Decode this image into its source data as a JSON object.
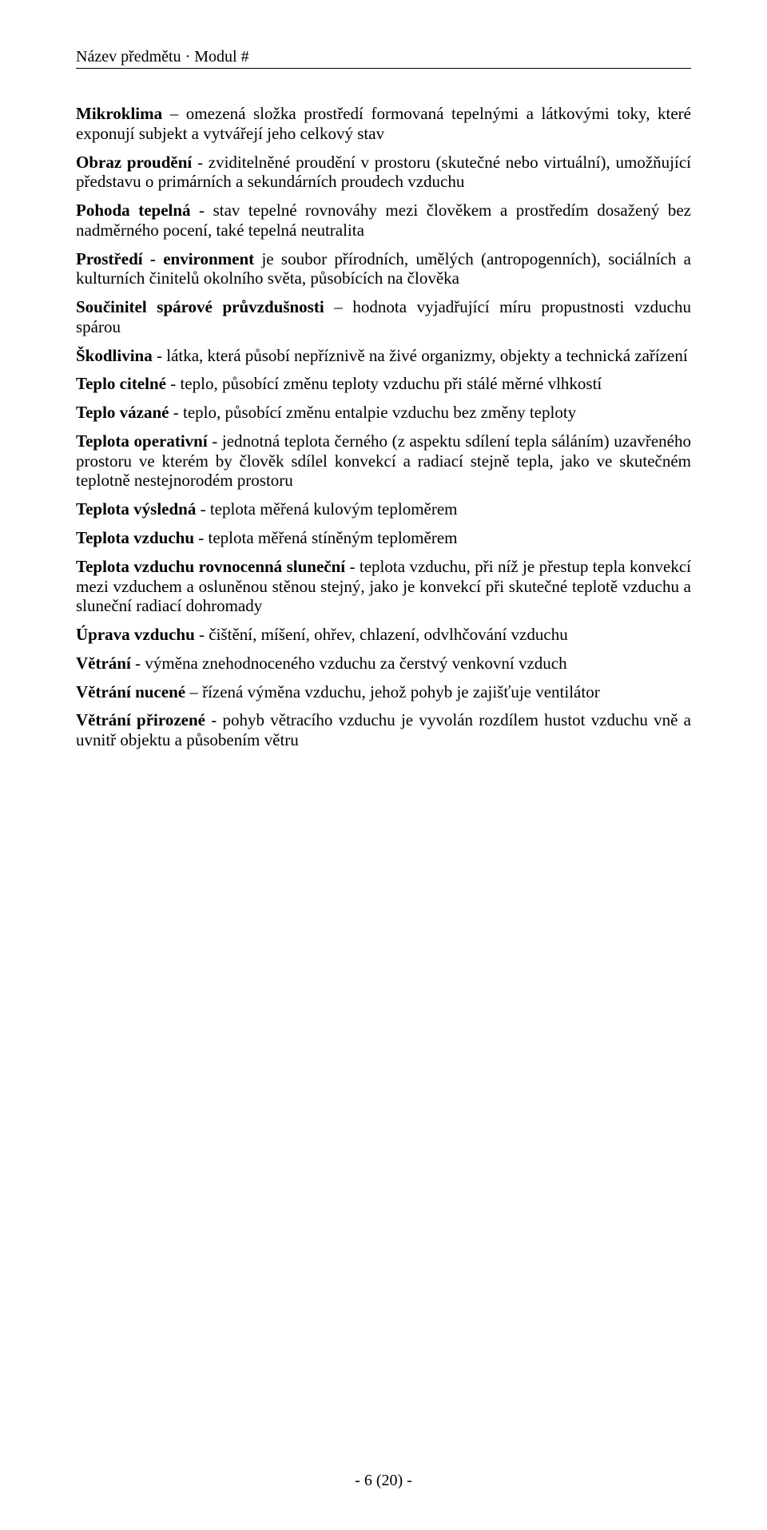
{
  "header": "Název předmětu · Modul #",
  "definitions": [
    {
      "term": "Mikroklima",
      "sep": " – ",
      "text": "omezená složka prostředí formovaná tepelnými a látkovými toky, které exponují subjekt a vytvářejí jeho celkový stav"
    },
    {
      "term": "Obraz proudění",
      "sep": " - ",
      "text": "zviditelněné proudění v prostoru (skutečné nebo virtuální), umožňující představu o primárních a sekundárních proudech vzduchu"
    },
    {
      "term": "Pohoda tepelná",
      "sep": " - ",
      "text": "stav tepelné rovnováhy mezi člověkem a prostředím dosažený bez nadměrného pocení, také tepelná neutralita"
    },
    {
      "term": "Prostředí - environment",
      "sep": " ",
      "text": "je soubor přírodních, umělých (antropogenních), sociálních a kulturních činitelů okolního světa, působících na člověka"
    },
    {
      "term": "Součinitel spárové průvzdušnosti",
      "sep": " – ",
      "text": "hodnota vyjadřující míru propustnosti vzduchu spárou"
    },
    {
      "term": "Škodlivina",
      "sep": " - ",
      "text": "látka, která působí nepříznivě na živé organizmy, objekty a technická zařízení"
    },
    {
      "term": "Teplo citelné",
      "sep": " - ",
      "text": "teplo, působící změnu teploty vzduchu při stálé měrné vlhkostí"
    },
    {
      "term": "Teplo vázané",
      "sep": " - ",
      "text": "teplo, působící změnu entalpie vzduchu bez změny teploty"
    },
    {
      "term": "Teplota operativní",
      "sep": " - ",
      "text": "jednotná teplota černého (z aspektu sdílení tepla sáláním) uzavřeného prostoru ve kterém by člověk sdílel konvekcí a radiací stejně tepla, jako ve skutečném teplotně nestejnorodém prostoru"
    },
    {
      "term": "Teplota výsledná",
      "sep": " - ",
      "text": "teplota měřená kulovým teploměrem"
    },
    {
      "term": "Teplota vzduchu",
      "sep": " - ",
      "text": "teplota měřená stíněným teploměrem"
    },
    {
      "term": "Teplota vzduchu rovnocenná sluneční",
      "sep": " - ",
      "text": "teplota vzduchu, při níž je přestup tepla konvekcí mezi vzduchem a osluněnou stěnou stejný, jako je konvekcí při skutečné teplotě vzduchu a sluneční radiací dohromady"
    },
    {
      "term": "Úprava vzduchu",
      "sep": " - ",
      "text": "čištění, míšení, ohřev, chlazení, odvlhčování vzduchu"
    },
    {
      "term": "Větrání",
      "sep": " - ",
      "text": "výměna znehodnoceného vzduchu za čerstvý venkovní vzduch"
    },
    {
      "term": "Větrání nucené",
      "sep": " – ",
      "text": "řízená výměna vzduchu, jehož pohyb je zajišťuje ventilátor"
    },
    {
      "term": "Větrání přirozené",
      "sep": " - ",
      "text": "pohyb větracího vzduchu je vyvolán rozdílem hustot vzduchu vně a uvnitř objektu a působením větru"
    }
  ],
  "footer": "- 6 (20) -"
}
